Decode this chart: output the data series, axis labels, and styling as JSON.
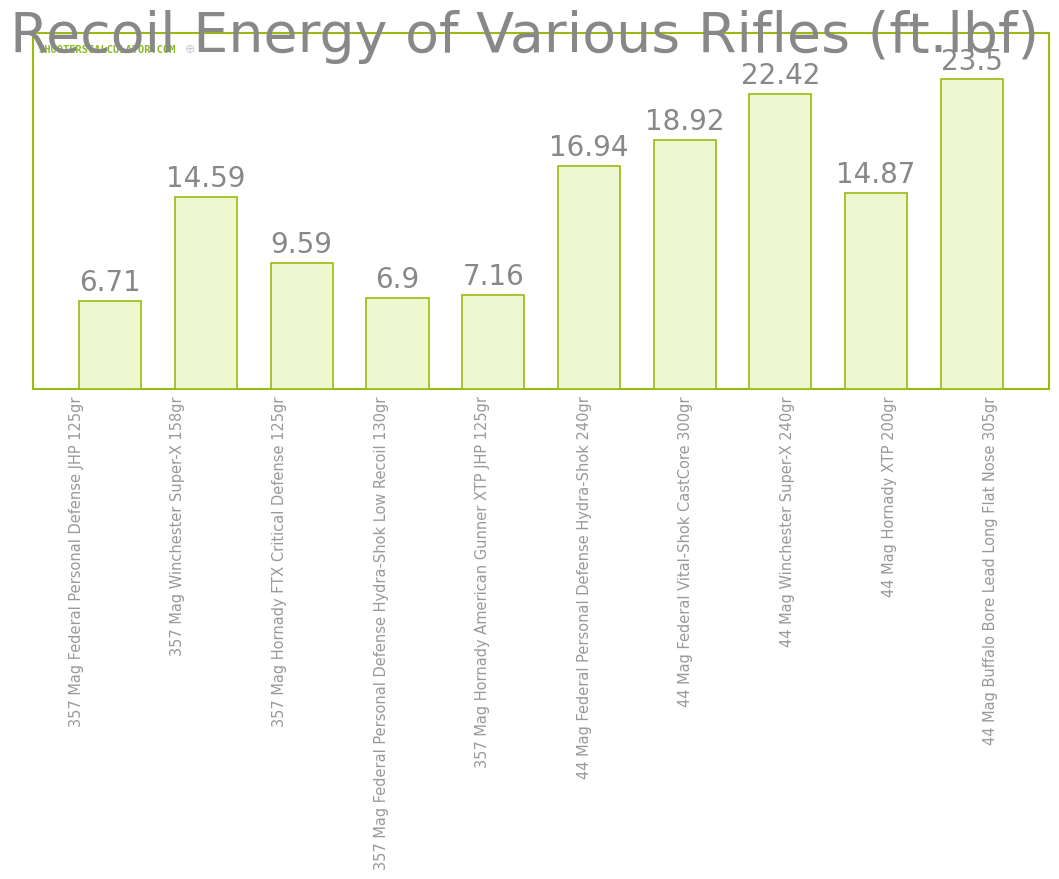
{
  "title": "Recoil Energy of Various Rifles (ft.lbf)",
  "categories": [
    "357 Mag Federal Personal Defense JHP 125gr",
    "357 Mag Winchester Super-X 158gr",
    "357 Mag Hornady FTX Critical Defense 125gr",
    "357 Mag Federal Personal Defense Hydra-Shok Low Recoil 130gr",
    "357 Mag Hornady American Gunner XTP JHP 125gr",
    "44 Mag Federal Personal Defense Hydra-Shok 240gr",
    "44 Mag Federal Vital-Shok CastCore 300gr",
    "44 Mag Winchester Super-X 240gr",
    "44 Mag Hornady XTP 200gr",
    "44 Mag Buffalo Bore Lead Long Flat Nose 305gr"
  ],
  "values": [
    6.71,
    14.59,
    9.59,
    6.9,
    7.16,
    16.94,
    18.92,
    22.42,
    14.87,
    23.5
  ],
  "bar_color": "#eef8d0",
  "bar_edge_color": "#99bb11",
  "title_color": "#888888",
  "title_fontsize": 40,
  "watermark_text": "SHOOTERSCALCULATOR.COM",
  "watermark_color": "#88bb22",
  "value_label_color": "#888888",
  "value_label_fontsize": 20,
  "tick_label_color": "#999999",
  "tick_label_fontsize": 10.5,
  "background_color": "#ffffff",
  "plot_bg_color": "#ffffff",
  "grid_color": "#e0e0e0",
  "border_color": "#99bb11",
  "ylim": [
    0,
    27
  ],
  "crosshair_color": "#cccccc"
}
